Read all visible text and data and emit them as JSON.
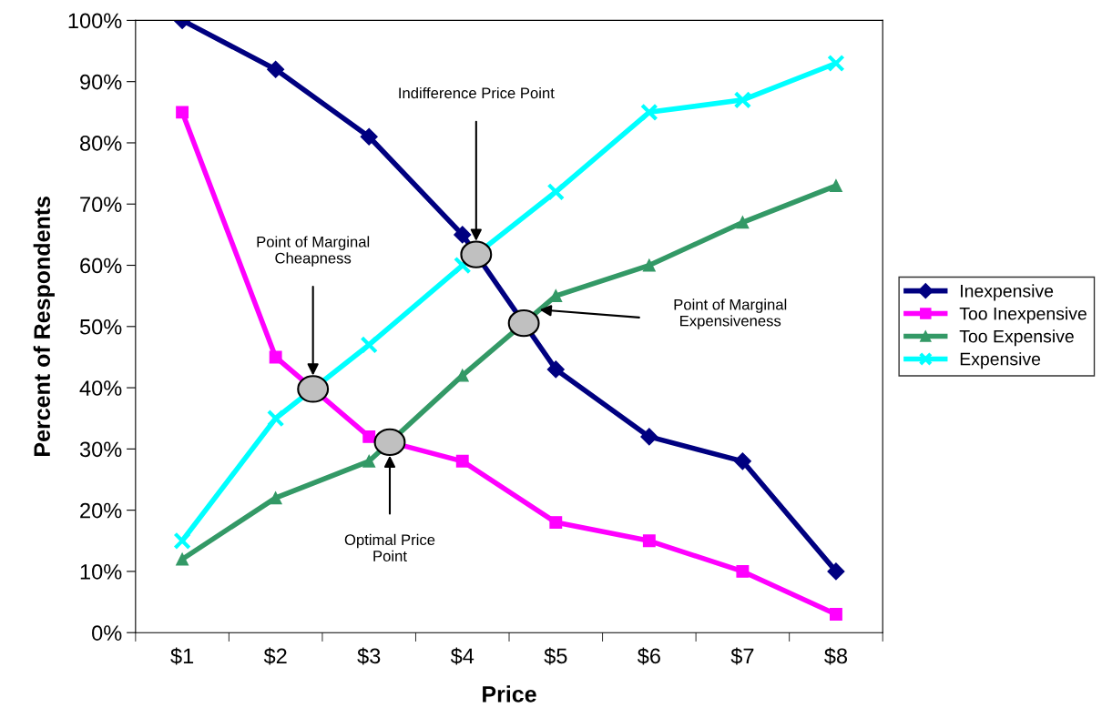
{
  "chart_data": {
    "type": "line",
    "xlabel": "Price",
    "ylabel": "Percent of Respondents",
    "categories": [
      "$1",
      "$2",
      "$3",
      "$4",
      "$5",
      "$6",
      "$7",
      "$8"
    ],
    "series": [
      {
        "name": "Inexpensive",
        "color": "#000080",
        "marker": "diamond",
        "values": [
          100,
          92,
          81,
          65,
          43,
          32,
          28,
          10
        ]
      },
      {
        "name": "Too Inexpensive",
        "color": "#ff00ff",
        "marker": "square",
        "values": [
          85,
          45,
          32,
          28,
          18,
          15,
          10,
          3
        ]
      },
      {
        "name": "Too Expensive",
        "color": "#339966",
        "marker": "triangle",
        "values": [
          12,
          22,
          28,
          42,
          55,
          60,
          67,
          73
        ]
      },
      {
        "name": "Expensive",
        "color": "#00ffff",
        "marker": "cross",
        "values": [
          15,
          35,
          47,
          60,
          72,
          85,
          87,
          93
        ]
      }
    ],
    "ylim": [
      0,
      100
    ],
    "yticks": [
      {
        "value": 0,
        "label": "0%"
      },
      {
        "value": 10,
        "label": "10%"
      },
      {
        "value": 20,
        "label": "20%"
      },
      {
        "value": 30,
        "label": "30%"
      },
      {
        "value": 40,
        "label": "40%"
      },
      {
        "value": 50,
        "label": "50%"
      },
      {
        "value": 60,
        "label": "60%"
      },
      {
        "value": 70,
        "label": "70%"
      },
      {
        "value": 80,
        "label": "80%"
      },
      {
        "value": 90,
        "label": "90%"
      },
      {
        "value": 100,
        "label": "100%"
      }
    ],
    "annotations": [
      "Indifference Price Point",
      "Point of Marginal\nExpensiveness",
      "Point of Marginal\nCheapness",
      "Optimal Price\nPoint"
    ],
    "grid": false,
    "legend": "right",
    "line_style": "solid"
  }
}
